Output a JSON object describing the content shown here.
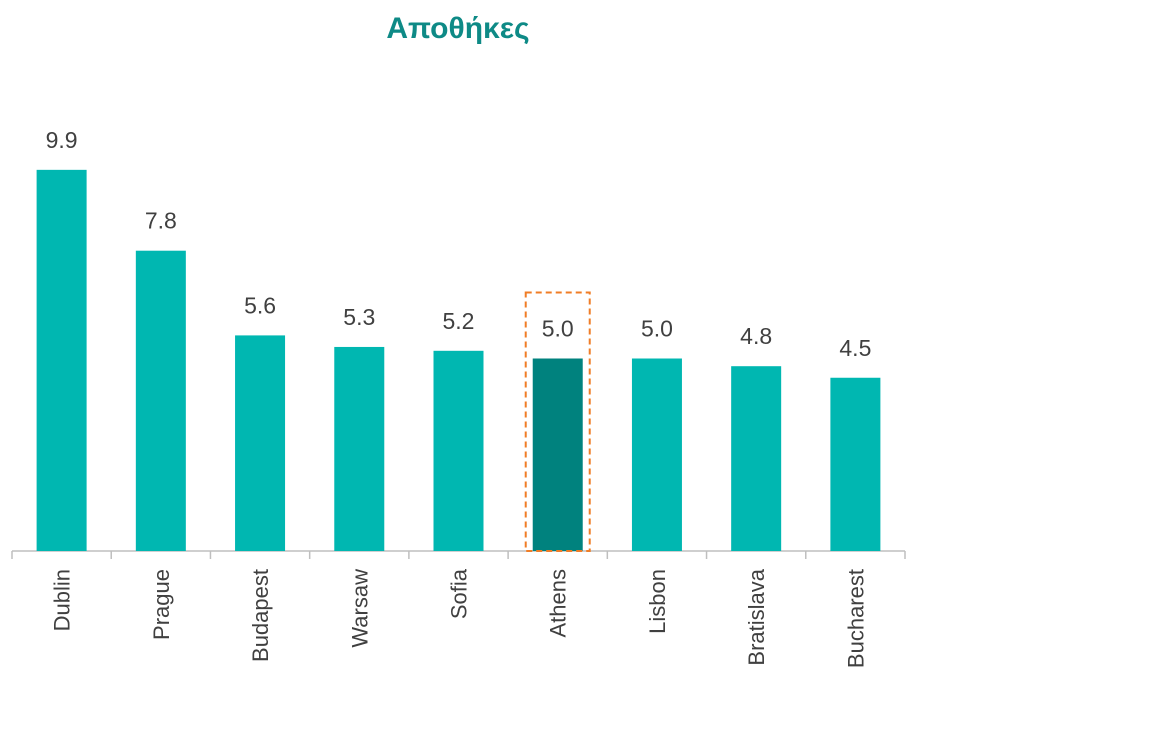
{
  "chart_data": {
    "type": "bar",
    "title": "Αποθήκες",
    "categories": [
      "Dublin",
      "Prague",
      "Budapest",
      "Warsaw",
      "Sofia",
      "Athens",
      "Lisbon",
      "Bratislava",
      "Bucharest"
    ],
    "values": [
      9.9,
      7.8,
      5.6,
      5.3,
      5.2,
      5.0,
      5.0,
      4.8,
      4.5
    ],
    "value_labels": [
      "9.9",
      "7.8",
      "5.6",
      "5.3",
      "5.2",
      "5.0",
      "5.0",
      "4.8",
      "4.5"
    ],
    "highlight": "Athens",
    "ylim": [
      0,
      10
    ],
    "xlabel": "",
    "ylabel": "",
    "grid": false,
    "colors": {
      "bar": "#00b7b1",
      "highlight": "#00827e",
      "highlight_box": "#f07d26",
      "title": "#0e8a86",
      "axis": "#bfbfbf",
      "text": "#404040"
    }
  }
}
